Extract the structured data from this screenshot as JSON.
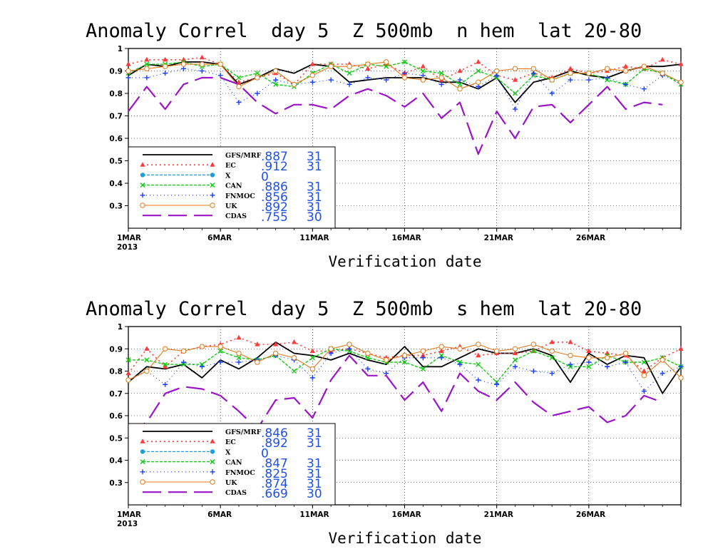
{
  "colors": {
    "background": "#ffffff",
    "axis": "#000000",
    "grid": "#000000",
    "GFS/MRF": "#000000",
    "EC": "#ff3b3b",
    "X": "#1a9ee0",
    "CAN": "#11cc11",
    "FNMOC": "#1a3fff",
    "UK": "#e07a1c",
    "CDAS": "#9a14c8",
    "stat_text": "#2050e8"
  },
  "chart_data": [
    {
      "type": "line",
      "title": "Anomaly Correl  day 5  Z 500mb  n hem  lat 20-80",
      "xlabel": "Verification date",
      "ylabel": "",
      "x_range": [
        1,
        31
      ],
      "ylim": [
        0.2,
        1.0
      ],
      "yticks": [
        "1",
        "0.9",
        "0.8",
        "0.7",
        "0.6",
        "0.5",
        "0.4",
        "0.3"
      ],
      "xticks": [
        {
          "day": 1,
          "label": "1MAR",
          "sublabel": "2013"
        },
        {
          "day": 6,
          "label": "6MAR",
          "sublabel": ""
        },
        {
          "day": 11,
          "label": "11MAR",
          "sublabel": ""
        },
        {
          "day": 16,
          "label": "16MAR",
          "sublabel": ""
        },
        {
          "day": 21,
          "label": "21MAR",
          "sublabel": ""
        },
        {
          "day": 26,
          "label": "26MAR",
          "sublabel": ""
        }
      ],
      "grid": true,
      "legend_position": "bottom-left",
      "series": [
        {
          "name": "GFS/MRF",
          "mean": ".887",
          "count": "31",
          "values": [
            0.88,
            0.93,
            0.92,
            0.94,
            0.94,
            0.93,
            0.84,
            0.87,
            0.91,
            0.89,
            0.93,
            0.92,
            0.85,
            0.86,
            0.87,
            0.87,
            0.87,
            0.85,
            0.85,
            0.82,
            0.87,
            0.76,
            0.85,
            0.87,
            0.9,
            0.88,
            0.87,
            0.9,
            0.92,
            0.92,
            0.93
          ]
        },
        {
          "name": "EC",
          "mean": ".912",
          "count": "31",
          "values": [
            0.93,
            0.95,
            0.95,
            0.95,
            0.96,
            0.93,
            0.85,
            0.87,
            0.89,
            0.84,
            0.93,
            0.93,
            0.93,
            0.91,
            0.93,
            0.89,
            0.92,
            0.86,
            0.9,
            0.94,
            0.88,
            0.86,
            0.89,
            0.87,
            0.91,
            0.89,
            0.9,
            0.92,
            0.91,
            0.95,
            0.93
          ]
        },
        {
          "name": "X",
          "mean": "0",
          "count": "",
          "values": []
        },
        {
          "name": "CAN",
          "mean": ".886",
          "count": "31",
          "values": [
            0.89,
            0.93,
            0.93,
            0.94,
            0.92,
            0.93,
            0.87,
            0.89,
            0.84,
            0.83,
            0.89,
            0.93,
            0.89,
            0.93,
            0.92,
            0.94,
            0.9,
            0.89,
            0.84,
            0.9,
            0.87,
            0.8,
            0.88,
            0.86,
            0.89,
            0.89,
            0.86,
            0.84,
            0.91,
            0.89,
            0.84
          ]
        },
        {
          "name": "FNMOC",
          "mean": ".856",
          "count": "31",
          "values": [
            0.87,
            0.87,
            0.89,
            0.91,
            0.9,
            0.88,
            0.76,
            0.8,
            0.86,
            0.84,
            0.85,
            0.86,
            0.84,
            0.87,
            0.86,
            0.89,
            0.88,
            0.84,
            0.86,
            0.83,
            0.88,
            0.73,
            0.89,
            0.8,
            0.86,
            0.86,
            0.87,
            0.84,
            0.82,
            0.88,
            0.85
          ]
        },
        {
          "name": "UK",
          "mean": ".892",
          "count": "31",
          "values": [
            0.9,
            0.91,
            0.92,
            0.93,
            0.93,
            0.93,
            0.83,
            0.87,
            0.9,
            0.84,
            0.88,
            0.92,
            0.92,
            0.93,
            0.94,
            0.87,
            0.86,
            0.87,
            0.82,
            0.85,
            0.9,
            0.91,
            0.91,
            0.86,
            0.89,
            0.89,
            0.91,
            0.9,
            0.92,
            0.89,
            0.85
          ]
        },
        {
          "name": "CDAS",
          "mean": ".755",
          "count": "30",
          "values": [
            0.72,
            0.83,
            0.73,
            0.84,
            0.87,
            0.87,
            0.84,
            0.76,
            0.71,
            0.75,
            0.75,
            0.73,
            0.79,
            0.82,
            0.79,
            0.74,
            0.8,
            0.69,
            0.76,
            0.53,
            0.72,
            0.6,
            0.74,
            0.75,
            0.67,
            0.75,
            0.83,
            0.73,
            0.76,
            0.75,
            null
          ]
        }
      ]
    },
    {
      "type": "line",
      "title": "Anomaly Correl  day 5  Z 500mb  s hem  lat 20-80",
      "xlabel": "Verification date",
      "ylabel": "",
      "x_range": [
        1,
        31
      ],
      "ylim": [
        0.2,
        1.0
      ],
      "yticks": [
        "1",
        "0.9",
        "0.8",
        "0.7",
        "0.6",
        "0.5",
        "0.4",
        "0.3"
      ],
      "xticks": [
        {
          "day": 1,
          "label": "1MAR",
          "sublabel": "2013"
        },
        {
          "day": 6,
          "label": "6MAR",
          "sublabel": ""
        },
        {
          "day": 11,
          "label": "11MAR",
          "sublabel": ""
        },
        {
          "day": 16,
          "label": "16MAR",
          "sublabel": ""
        },
        {
          "day": 21,
          "label": "21MAR",
          "sublabel": ""
        },
        {
          "day": 26,
          "label": "26MAR",
          "sublabel": ""
        }
      ],
      "grid": true,
      "legend_position": "bottom-left",
      "series": [
        {
          "name": "GFS/MRF",
          "mean": ".846",
          "count": "31",
          "values": [
            0.75,
            0.82,
            0.81,
            0.83,
            0.77,
            0.85,
            0.81,
            0.86,
            0.93,
            0.88,
            0.87,
            0.85,
            0.88,
            0.85,
            0.83,
            0.91,
            0.82,
            0.82,
            0.86,
            0.9,
            0.88,
            0.88,
            0.9,
            0.87,
            0.75,
            0.88,
            0.83,
            0.87,
            0.86,
            0.7,
            0.82
          ]
        },
        {
          "name": "EC",
          "mean": ".892",
          "count": "31",
          "values": [
            0.79,
            0.9,
            0.82,
            0.89,
            0.91,
            0.92,
            0.95,
            0.92,
            0.92,
            0.93,
            0.89,
            0.89,
            0.9,
            0.88,
            0.86,
            0.87,
            0.87,
            0.89,
            0.91,
            0.87,
            0.88,
            0.88,
            0.89,
            0.93,
            0.93,
            0.89,
            0.88,
            0.87,
            0.8,
            0.86,
            0.9
          ]
        },
        {
          "name": "X",
          "mean": "0",
          "count": "",
          "values": []
        },
        {
          "name": "CAN",
          "mean": ".847",
          "count": "31",
          "values": [
            0.85,
            0.85,
            0.83,
            0.83,
            0.83,
            0.89,
            0.86,
            0.85,
            0.87,
            0.8,
            0.86,
            0.9,
            0.89,
            0.86,
            0.84,
            0.84,
            0.81,
            0.87,
            0.84,
            0.83,
            0.75,
            0.85,
            0.89,
            0.86,
            0.82,
            0.82,
            0.87,
            0.84,
            0.84,
            0.86,
            0.82
          ]
        },
        {
          "name": "FNMOC",
          "mean": ".825",
          "count": "31",
          "values": [
            0.76,
            0.8,
            0.74,
            0.84,
            0.82,
            0.84,
            0.84,
            0.85,
            0.87,
            0.85,
            0.77,
            0.88,
            0.9,
            0.81,
            0.79,
            0.86,
            0.86,
            0.86,
            0.83,
            0.76,
            0.74,
            0.82,
            0.8,
            0.79,
            0.83,
            0.84,
            0.82,
            0.84,
            0.71,
            0.79,
            0.82
          ]
        },
        {
          "name": "UK",
          "mean": ".874",
          "count": "31",
          "values": [
            0.76,
            0.8,
            0.9,
            0.89,
            0.91,
            0.91,
            0.88,
            0.84,
            0.88,
            0.86,
            0.81,
            0.9,
            0.92,
            0.88,
            0.85,
            0.87,
            0.89,
            0.91,
            0.9,
            0.92,
            0.89,
            0.9,
            0.92,
            0.89,
            0.87,
            0.86,
            0.86,
            0.88,
            0.78,
            0.85,
            0.77
          ]
        },
        {
          "name": "CDAS",
          "mean": ".669",
          "count": "30",
          "values": [
            0.53,
            0.57,
            0.7,
            0.73,
            0.72,
            0.69,
            0.62,
            0.54,
            0.67,
            0.68,
            0.59,
            0.76,
            0.87,
            0.78,
            0.78,
            0.67,
            0.75,
            0.62,
            0.79,
            0.71,
            0.67,
            0.75,
            0.66,
            0.6,
            0.62,
            0.64,
            0.57,
            0.6,
            0.69,
            0.66,
            null
          ]
        }
      ]
    }
  ]
}
